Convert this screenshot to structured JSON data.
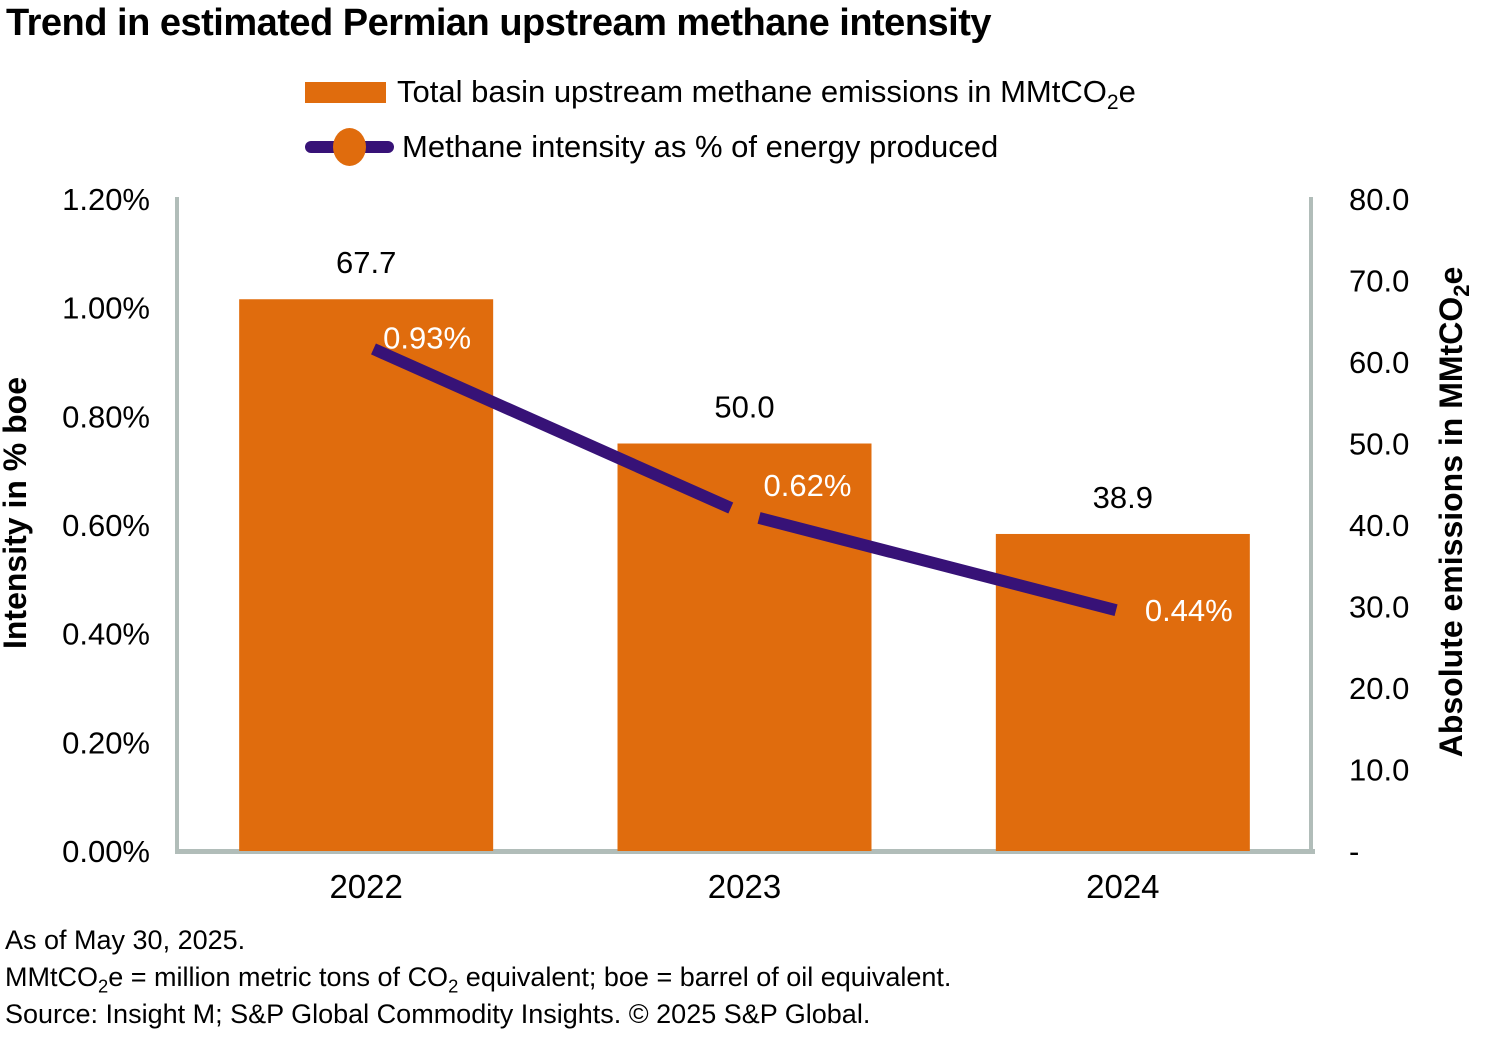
{
  "title": "Trend in estimated Permian upstream methane intensity",
  "legend": {
    "bar_label": "Total basin upstream methane emissions in MMtCO₂e",
    "line_label": "Methane intensity as % of energy produced"
  },
  "colors": {
    "bar": "#E06C0D",
    "line": "#371277",
    "axis_line": "#B1BDB9",
    "text": "#000000",
    "line_label_text": "#FFFFFF"
  },
  "chart_data": {
    "type": "combo",
    "categories": [
      "2022",
      "2023",
      "2024"
    ],
    "series": [
      {
        "name": "Total basin upstream methane emissions in MMtCO₂e",
        "type": "bar",
        "axis": "right",
        "values": [
          67.7,
          50.0,
          38.9
        ],
        "data_labels": [
          "67.7",
          "50.0",
          "38.9"
        ]
      },
      {
        "name": "Methane intensity as % of energy produced",
        "type": "line",
        "axis": "left",
        "values": [
          0.93,
          0.62,
          0.44
        ],
        "data_labels": [
          "0.93%",
          "0.62%",
          "0.44%"
        ]
      }
    ],
    "left_axis": {
      "title": "Intensity in % boe",
      "ticks": [
        "1.20%",
        "1.00%",
        "0.80%",
        "0.60%",
        "0.40%",
        "0.20%",
        "0.00%"
      ],
      "min": 0,
      "max": 1.2
    },
    "right_axis": {
      "title": "Absolute emissions in MMtCO₂e",
      "ticks": [
        "80.0",
        "70.0",
        "60.0",
        "50.0",
        "40.0",
        "30.0",
        "20.0",
        "10.0",
        "-"
      ],
      "min": 0,
      "max": 80
    },
    "grid": false,
    "legend_position": "top"
  },
  "footnotes": [
    "As of May 30, 2025.",
    "MMtCO₂e = million metric tons of CO₂ equivalent; boe = barrel of oil equivalent.",
    "Source: Insight M; S&P Global Commodity Insights. © 2025 S&P Global."
  ]
}
